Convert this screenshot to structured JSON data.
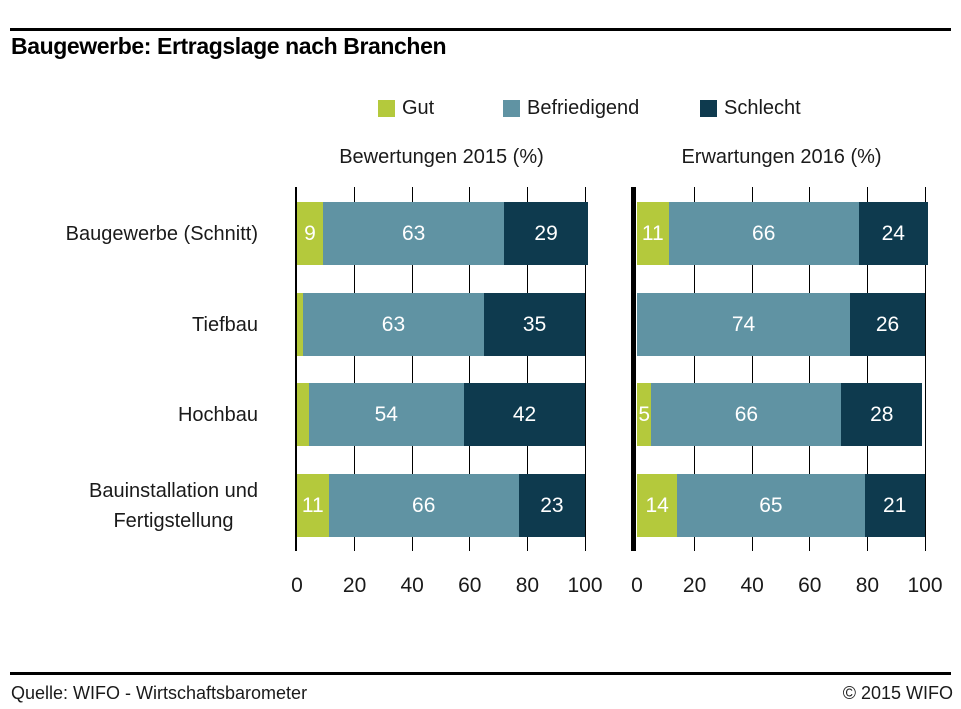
{
  "header": {
    "title": "Baugewerbe: Ertragslage nach Branchen"
  },
  "legend": {
    "items": [
      {
        "label": "Gut",
        "color": "#b4c93c"
      },
      {
        "label": "Befriedigend",
        "color": "#6093a3"
      },
      {
        "label": "Schlecht",
        "color": "#0e3a4e"
      }
    ]
  },
  "chart_data": {
    "type": "bar",
    "orientation": "horizontal",
    "stacked": true,
    "title": "Baugewerbe: Ertragslage nach Branchen",
    "categories": [
      "Baugewerbe (Schnitt)",
      "Tiefbau",
      "Hochbau",
      "Bauinstallation und Fertigstellung"
    ],
    "category_lines": [
      [
        "Baugewerbe (Schnitt)"
      ],
      [
        "Tiefbau"
      ],
      [
        "Hochbau"
      ],
      [
        "Bauinstallation und",
        "Fertigstellung"
      ]
    ],
    "xlim": [
      0,
      100
    ],
    "xticks": [
      0,
      20,
      40,
      60,
      80,
      100
    ],
    "value_label_min": 5,
    "grid": true,
    "legend_position": "top",
    "panels": [
      {
        "title": "Bewertungen 2015 (%)",
        "series": [
          {
            "name": "Gut",
            "values": [
              9,
              2,
              4,
              11
            ]
          },
          {
            "name": "Befriedigend",
            "values": [
              63,
              63,
              54,
              66
            ]
          },
          {
            "name": "Schlecht",
            "values": [
              29,
              35,
              42,
              23
            ]
          }
        ]
      },
      {
        "title": "Erwartungen 2016 (%)",
        "series": [
          {
            "name": "Gut",
            "values": [
              11,
              0,
              5,
              14
            ]
          },
          {
            "name": "Befriedigend",
            "values": [
              66,
              74,
              66,
              65
            ]
          },
          {
            "name": "Schlecht",
            "values": [
              24,
              26,
              28,
              21
            ]
          }
        ]
      }
    ]
  },
  "footer": {
    "source": "Quelle: WIFO - Wirtschaftsbarometer",
    "copyright": "© 2015 WIFO"
  }
}
